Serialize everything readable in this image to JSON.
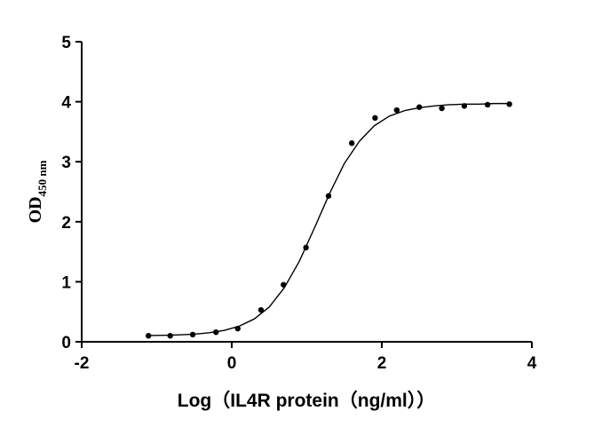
{
  "chart_data": {
    "type": "scatter",
    "x_label": "Log（IL4R protein（ng/ml））",
    "y_label": {
      "text": "OD",
      "sub": "450 nm"
    },
    "xlim": [
      -2,
      4
    ],
    "xticks": [
      -2,
      0,
      2,
      4
    ],
    "ylim": [
      0,
      5
    ],
    "yticks": [
      0,
      1,
      2,
      3,
      4,
      5
    ],
    "series": [
      {
        "type": "scatter",
        "color": "#000000",
        "x": [
          -1.11,
          -0.82,
          -0.52,
          -0.21,
          0.08,
          0.39,
          0.69,
          0.99,
          1.29,
          1.6,
          1.91,
          2.2,
          2.5,
          2.8,
          3.1,
          3.41,
          3.7
        ],
        "values": [
          0.1,
          0.1,
          0.12,
          0.16,
          0.22,
          0.53,
          0.95,
          1.57,
          2.43,
          3.31,
          3.73,
          3.86,
          3.91,
          3.89,
          3.93,
          3.95,
          3.96
        ]
      },
      {
        "type": "line",
        "color": "#000000",
        "x": [
          -1.1,
          -0.9,
          -0.7,
          -0.5,
          -0.3,
          -0.1,
          0.1,
          0.3,
          0.5,
          0.7,
          0.9,
          1.1,
          1.3,
          1.5,
          1.7,
          1.9,
          2.1,
          2.3,
          2.5,
          2.7,
          2.9,
          3.1,
          3.3,
          3.5,
          3.7
        ],
        "values": [
          0.105,
          0.108,
          0.115,
          0.127,
          0.15,
          0.19,
          0.26,
          0.38,
          0.58,
          0.9,
          1.34,
          1.89,
          2.46,
          2.97,
          3.34,
          3.6,
          3.76,
          3.85,
          3.9,
          3.93,
          3.95,
          3.96,
          3.96,
          3.97,
          3.97
        ]
      }
    ]
  }
}
